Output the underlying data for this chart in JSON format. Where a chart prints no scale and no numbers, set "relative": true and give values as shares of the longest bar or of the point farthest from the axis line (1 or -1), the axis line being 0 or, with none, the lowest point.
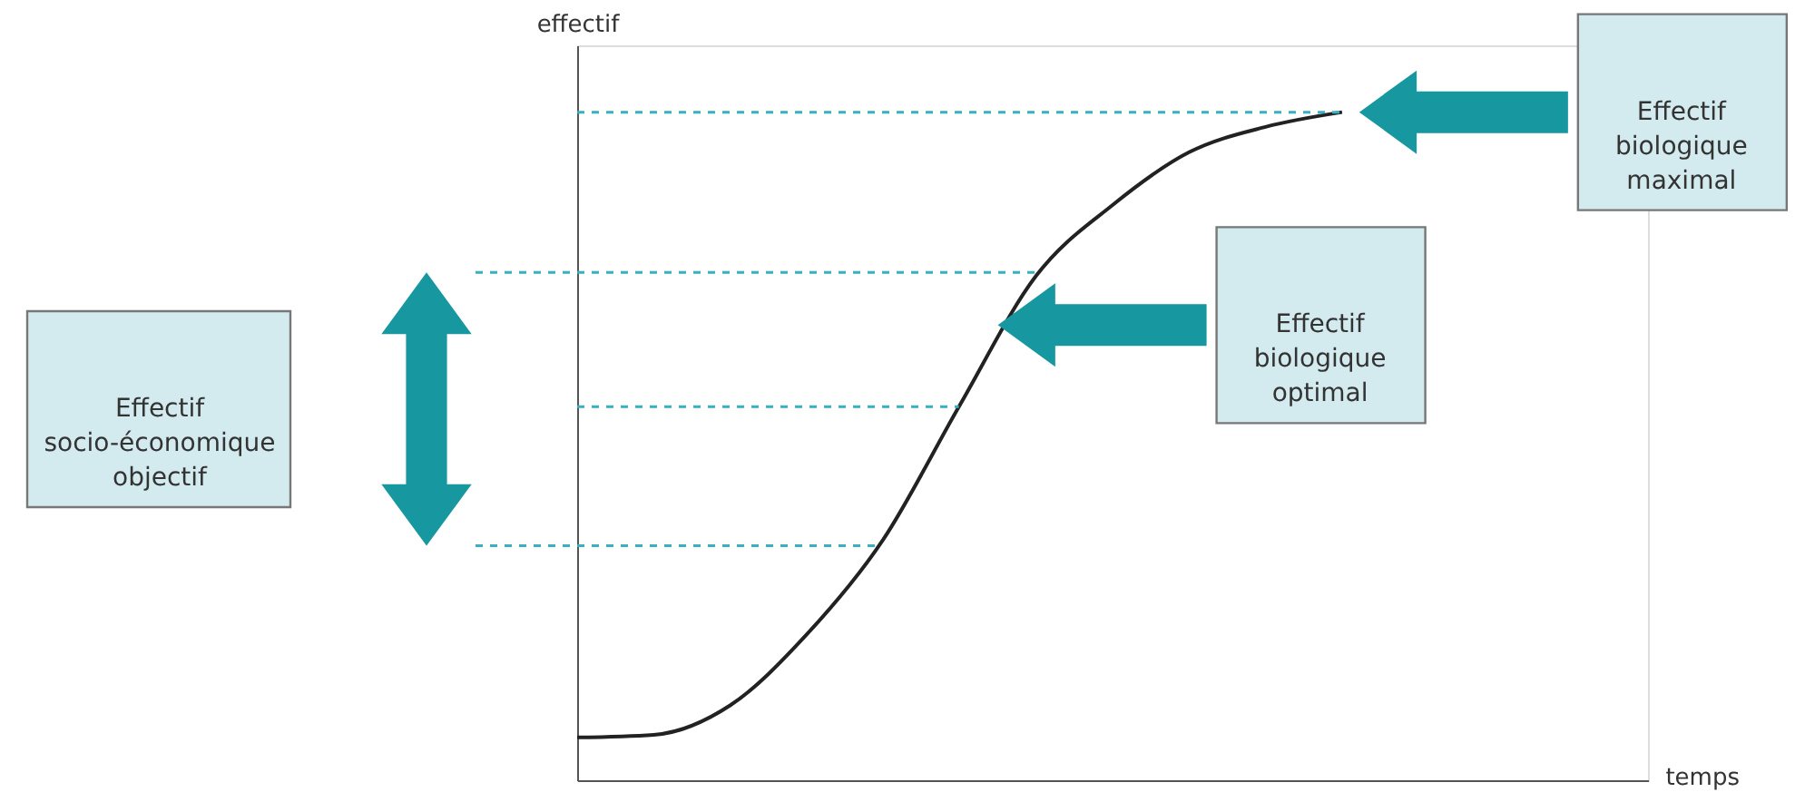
{
  "chart_data": {
    "type": "line",
    "relative": true,
    "xlabel": "temps",
    "ylabel": "effectif",
    "tick_labels": false,
    "grid": false,
    "marker": "none",
    "line_style": "solid",
    "categories": [
      null,
      null,
      null,
      null,
      null,
      null,
      null,
      null,
      null,
      null,
      null,
      null,
      null,
      null,
      null
    ],
    "series": [
      {
        "color": "#222222",
        "values": [
          0.064,
          0.068,
          0.112,
          0.218,
          0.36,
          0.561,
          0.755,
          0.861,
          0.94,
          0.978,
          1.0,
          null,
          null,
          null,
          null
        ]
      }
    ],
    "ref_lines": [
      {
        "axis": "y",
        "value": 1.0,
        "color": "#3aafbf",
        "line_style": "dashed"
      },
      {
        "axis": "y",
        "value": 0.559,
        "color": "#3aafbf",
        "line_style": "dashed"
      },
      {
        "axis": "y",
        "value": 0.76,
        "color": "#3aafbf",
        "line_style": "dashed"
      },
      {
        "axis": "y",
        "value": 0.351,
        "color": "#3aafbf",
        "line_style": "dashed"
      }
    ],
    "annotations": [
      "Effectif biologique maximal",
      "Effectif biologique optimal",
      "Effectif socio-économique objectif"
    ]
  }
}
